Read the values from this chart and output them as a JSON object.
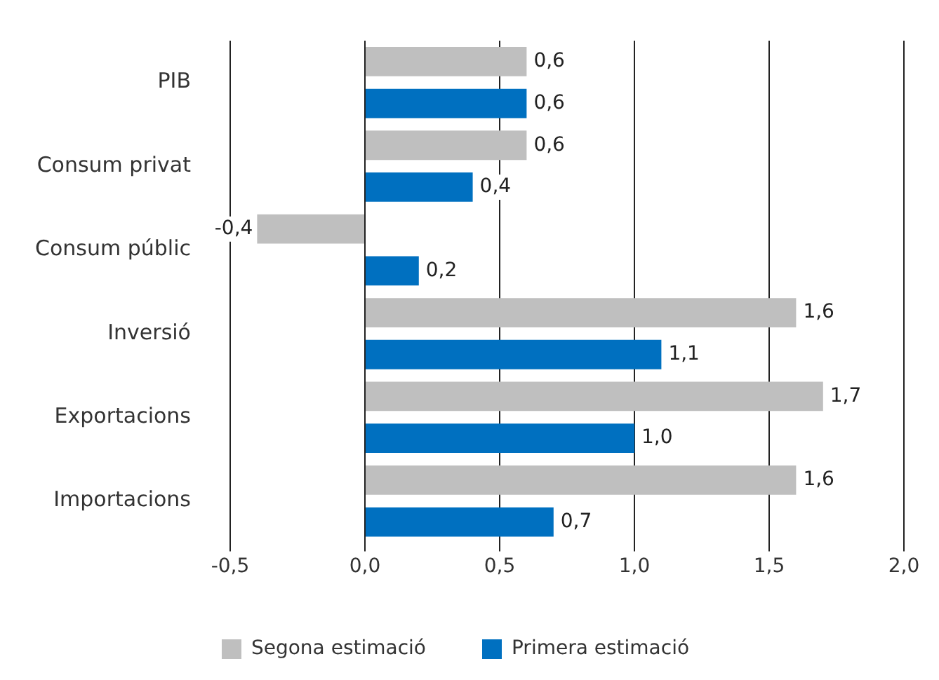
{
  "chart_data": {
    "type": "bar",
    "orientation": "horizontal",
    "categories": [
      "PIB",
      "Consum privat",
      "Consum públic",
      "Inversió",
      "Exportacions",
      "Importacions"
    ],
    "series": [
      {
        "name": "Segona estimació",
        "color": "#bfbfbf",
        "values": [
          0.6,
          0.6,
          -0.4,
          1.6,
          1.7,
          1.6
        ],
        "value_labels": [
          "0,6",
          "0,6",
          "-0,4",
          "1,6",
          "1,7",
          "1,6"
        ]
      },
      {
        "name": "Primera estimació",
        "color": "#0070c0",
        "values": [
          0.6,
          0.4,
          0.2,
          1.1,
          1.0,
          0.7
        ],
        "value_labels": [
          "0,6",
          "0,4",
          "0,2",
          "1,1",
          "1,0",
          "0,7"
        ]
      }
    ],
    "xlim": [
      -0.5,
      2.0
    ],
    "xticks": [
      {
        "value": -0.5,
        "label": "-0,5"
      },
      {
        "value": 0,
        "label": "0,0"
      },
      {
        "value": 0.5,
        "label": "0,5"
      },
      {
        "value": 1,
        "label": "1,0"
      },
      {
        "value": 1.5,
        "label": "1,5"
      },
      {
        "value": 2,
        "label": "2,0"
      }
    ],
    "grid": "x",
    "legend": "bottom"
  }
}
